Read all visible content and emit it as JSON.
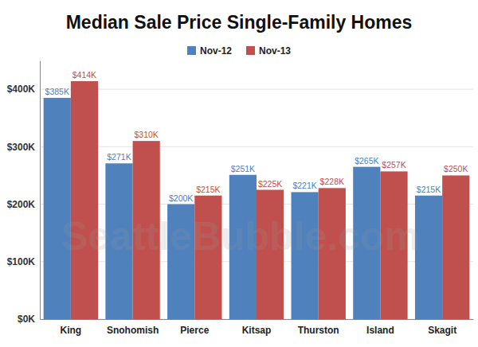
{
  "chart_data": {
    "type": "bar",
    "title": "Median Sale Price Single-Family Homes",
    "categories": [
      "King",
      "Snohomish",
      "Pierce",
      "Kitsap",
      "Thurston",
      "Island",
      "Skagit"
    ],
    "series": [
      {
        "name": "Nov-12",
        "color": "#4f81bd",
        "values": [
          385000,
          271000,
          200000,
          251000,
          221000,
          265000,
          215000
        ],
        "value_labels": [
          "$385K",
          "$271K",
          "$200K",
          "$251K",
          "$221K",
          "$265K",
          "$215K"
        ]
      },
      {
        "name": "Nov-13",
        "color": "#c0504d",
        "values": [
          414000,
          310000,
          215000,
          225000,
          228000,
          257000,
          250000
        ],
        "value_labels": [
          "$414K",
          "$310K",
          "$215K",
          "$225K",
          "$228K",
          "$257K",
          "$250K"
        ]
      }
    ],
    "ylim": [
      0,
      450000
    ],
    "yticks": [
      {
        "value": 0,
        "label": "$0K"
      },
      {
        "value": 100000,
        "label": "$100K"
      },
      {
        "value": 200000,
        "label": "$200K"
      },
      {
        "value": 300000,
        "label": "$300K"
      },
      {
        "value": 400000,
        "label": "$400K"
      }
    ],
    "grid": true,
    "data_labels": true,
    "legend": "top",
    "annotations": [
      "SeattleBubble.com"
    ]
  }
}
